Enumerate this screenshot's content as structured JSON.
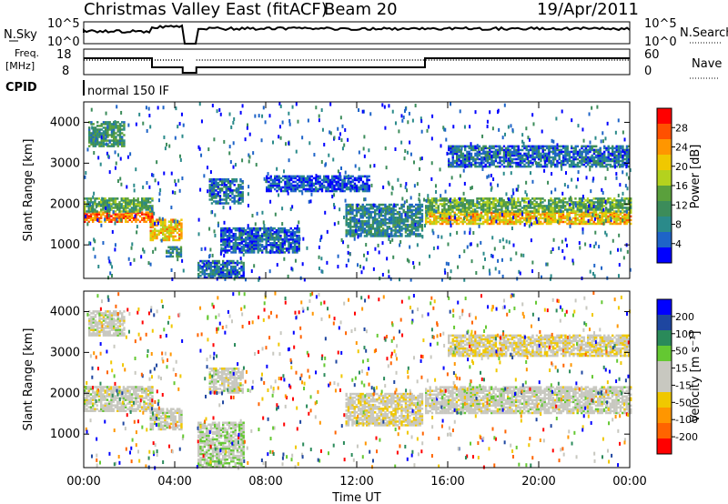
{
  "header": {
    "title": "Christmas Valley East (fitACF)",
    "beam": "Beam 20",
    "date": "19/Apr/2011"
  },
  "aux_panels": {
    "nsky_label": "N.Sky",
    "nsearch_label": "N.Search",
    "nsky_ticks": [
      "10^5",
      "10^0"
    ],
    "nsearch_ticks": [
      "10^5",
      "10^0"
    ],
    "freq_label_line1": "Freq.",
    "freq_label_line2": "[MHz]",
    "freq_ticks": [
      "18",
      "8"
    ],
    "nave_label": "Nave",
    "nave_ticks": [
      "60",
      "0"
    ],
    "cpid_label": "CPID",
    "cpid_text": "normal 150 IF"
  },
  "colors": {
    "power_scale": [
      "#0000ff",
      "#1e64c8",
      "#2a8a8a",
      "#3c8c5a",
      "#5aa03c",
      "#b4d21e",
      "#f0c800",
      "#ff9600",
      "#ff5000",
      "#ff0000"
    ],
    "velocity_scale": [
      "#ff0000",
      "#ff6400",
      "#ff9600",
      "#f0c800",
      "#c8c8c0",
      "#c8c8c0",
      "#64c832",
      "#2a8a5a",
      "#1e46a0",
      "#0000ff"
    ]
  },
  "chart_data": [
    {
      "type": "heatmap",
      "name": "power",
      "xlabel": "Time UT",
      "ylabel": "Slant Range [km]",
      "xlim": [
        0,
        24
      ],
      "ylim": [
        180,
        4500
      ],
      "yticks": [
        "1000",
        "2000",
        "3000",
        "4000"
      ],
      "colorbar_label": "Power [dB]",
      "colorbar_ticks": [
        "4",
        "8",
        "12",
        "16",
        "20",
        "24",
        "28"
      ],
      "colorbar_range": [
        0,
        30
      ],
      "data_gap_hours": [
        4.35,
        4.95
      ],
      "bands": [
        {
          "t": [
            0.0,
            3.0
          ],
          "r": [
            1550,
            1800
          ],
          "v": 24
        },
        {
          "t": [
            0.0,
            3.0
          ],
          "r": [
            1800,
            2150
          ],
          "v": 12
        },
        {
          "t": [
            0.2,
            1.8
          ],
          "r": [
            3400,
            4000
          ],
          "v": 10
        },
        {
          "t": [
            2.9,
            4.3
          ],
          "r": [
            1100,
            1600
          ],
          "v": 20
        },
        {
          "t": [
            3.6,
            4.3
          ],
          "r": [
            700,
            950
          ],
          "v": 8
        },
        {
          "t": [
            5.0,
            7.0
          ],
          "r": [
            180,
            600
          ],
          "v": 6
        },
        {
          "t": [
            6.0,
            9.5
          ],
          "r": [
            800,
            1400
          ],
          "v": 5
        },
        {
          "t": [
            5.5,
            7.0
          ],
          "r": [
            2000,
            2600
          ],
          "v": 7
        },
        {
          "t": [
            8.0,
            12.5
          ],
          "r": [
            2300,
            2700
          ],
          "v": 4
        },
        {
          "t": [
            11.5,
            14.9
          ],
          "r": [
            1200,
            2000
          ],
          "v": 8
        },
        {
          "t": [
            15.0,
            24.0
          ],
          "r": [
            1500,
            1800
          ],
          "v": 20
        },
        {
          "t": [
            15.0,
            24.0
          ],
          "r": [
            1800,
            2150
          ],
          "v": 13
        },
        {
          "t": [
            16.0,
            24.0
          ],
          "r": [
            2900,
            3400
          ],
          "v": 6
        }
      ]
    },
    {
      "type": "heatmap",
      "name": "velocity",
      "xlabel": "Time UT",
      "ylabel": "Slant Range [km]",
      "xlim": [
        0,
        24
      ],
      "ylim": [
        180,
        4500
      ],
      "yticks": [
        "1000",
        "2000",
        "3000",
        "4000"
      ],
      "xticks": [
        "00:00",
        "04:00",
        "08:00",
        "12:00",
        "16:00",
        "20:00",
        "00:00"
      ],
      "colorbar_label": "Velocity [m s⁻¹]",
      "colorbar_ticks": [
        "-200",
        "-100",
        "-50",
        "-15",
        "15",
        "50",
        "100",
        "200"
      ],
      "colorbar_range": [
        -250,
        250
      ],
      "data_gap_hours": [
        4.35,
        4.95
      ],
      "bands": [
        {
          "t": [
            0.0,
            3.0
          ],
          "r": [
            1550,
            2150
          ],
          "v": 0
        },
        {
          "t": [
            0.2,
            1.8
          ],
          "r": [
            3400,
            4000
          ],
          "v": 0
        },
        {
          "t": [
            2.9,
            4.3
          ],
          "r": [
            1100,
            1600
          ],
          "v": 0
        },
        {
          "t": [
            5.0,
            7.0
          ],
          "r": [
            180,
            1300
          ],
          "v": 30
        },
        {
          "t": [
            5.5,
            7.0
          ],
          "r": [
            2000,
            2600
          ],
          "v": 0
        },
        {
          "t": [
            11.5,
            14.9
          ],
          "r": [
            1200,
            2000
          ],
          "v": -20
        },
        {
          "t": [
            15.0,
            24.0
          ],
          "r": [
            1500,
            2150
          ],
          "v": 0
        },
        {
          "t": [
            16.0,
            24.0
          ],
          "r": [
            2900,
            3400
          ],
          "v": -30
        }
      ]
    }
  ]
}
